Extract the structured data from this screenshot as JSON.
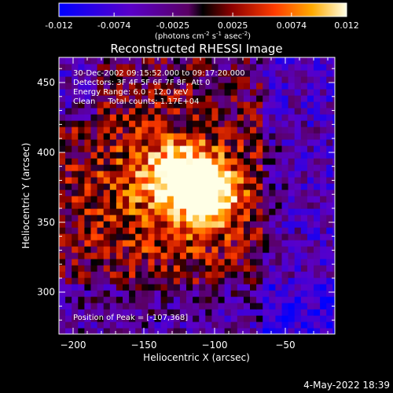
{
  "chart_data": {
    "type": "heatmap",
    "title": "Reconstructed RHESSI Image",
    "xlabel": "Heliocentric X (arcsec)",
    "ylabel": "Heliocentric Y (arcsec)",
    "xlim": [
      -210,
      -15
    ],
    "ylim": [
      270,
      468
    ],
    "x_ticks": [
      -200,
      -150,
      -100,
      -50
    ],
    "y_ticks": [
      300,
      350,
      400,
      450
    ],
    "colorbar": {
      "range": [
        -0.012,
        0.012
      ],
      "ticks": [
        "-0.012",
        "-0.0074",
        "-0.0025",
        "0.0025",
        "0.0074",
        "0.012"
      ],
      "units": "(photons cm",
      "units_sup1": "-2",
      "units_mid": " s",
      "units_sup2": "-1",
      "units_end": " asec",
      "units_sup3": "-2",
      "units_close": ")"
    },
    "annotations": [
      "30-Dec-2002 09:15:52.000 to 09:17:20.000",
      "Detectors: 3F 4F 5F 6F 7F 8F, Att 0",
      "Energy Range: 6.0 - 12.0 keV",
      "Clean     Total counts: 1.17E+04"
    ],
    "peak_label": "Position of Peak = [-107,368]",
    "peak": [
      -107,
      368
    ],
    "grid": false
  },
  "footer": {
    "date": "4-May-2022 18:39"
  }
}
